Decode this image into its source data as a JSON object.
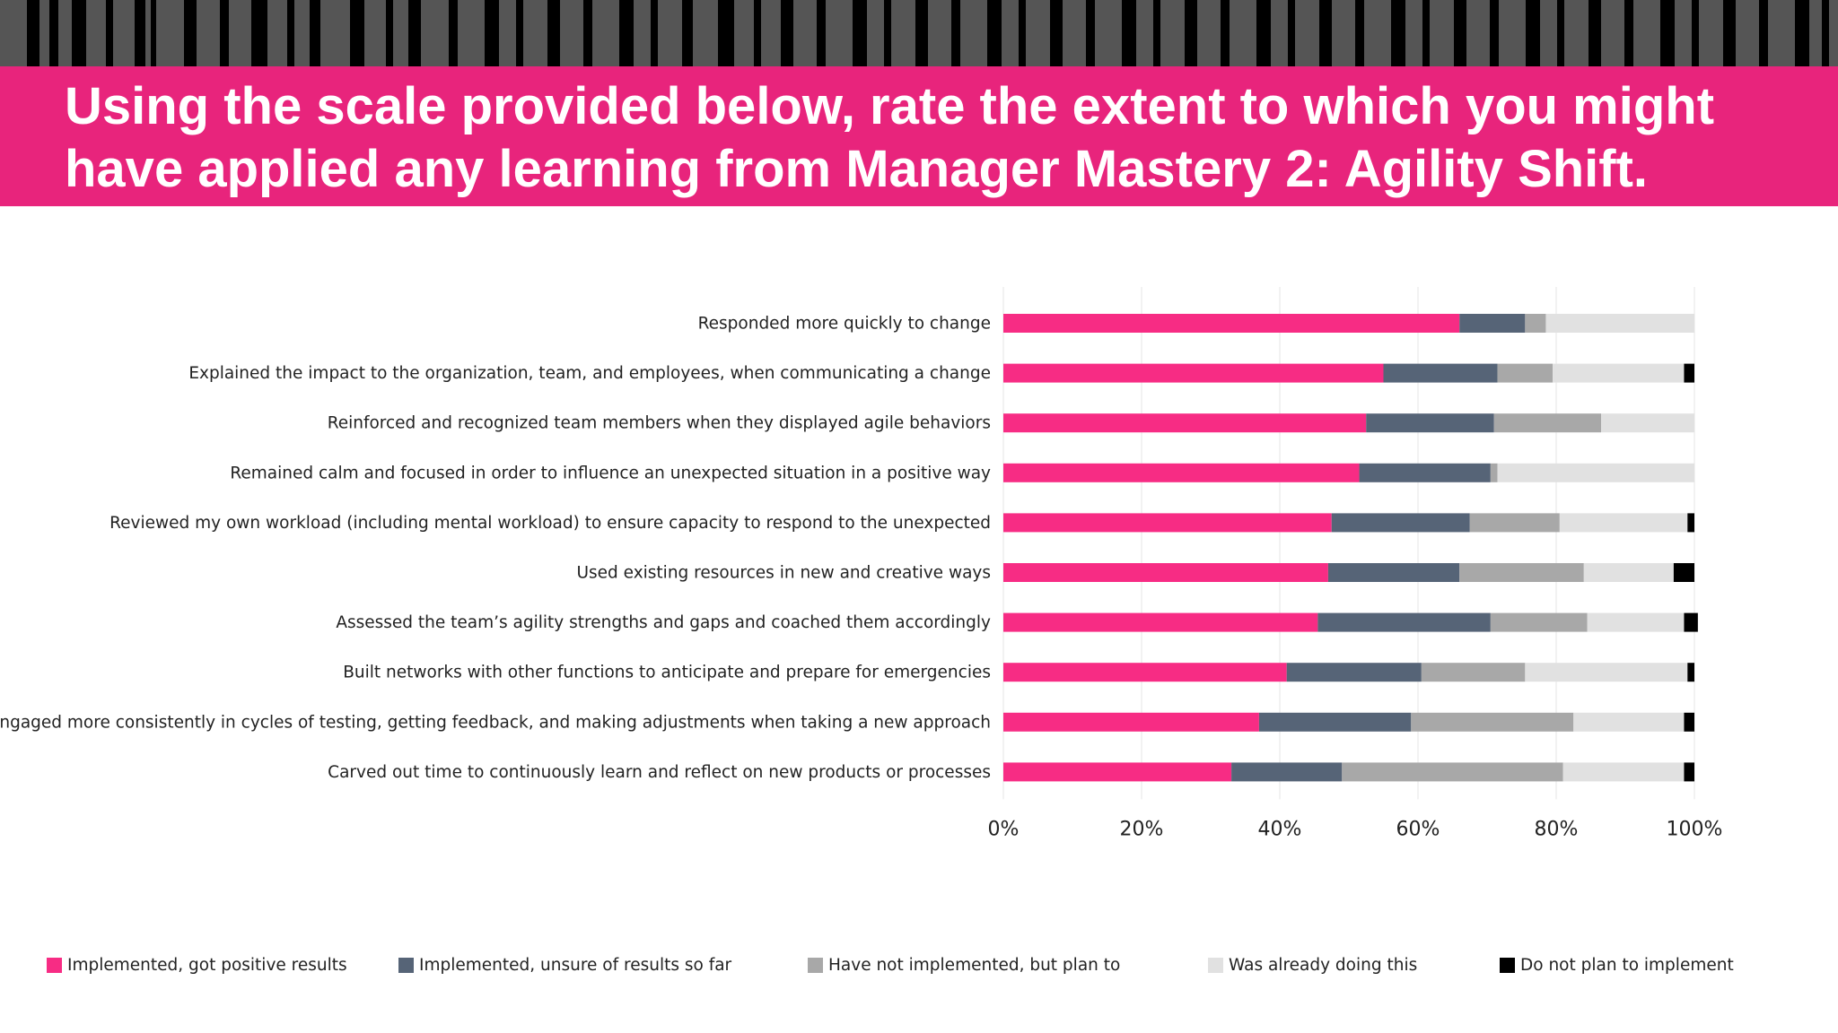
{
  "header": {
    "title": "Using the scale provided below, rate the extent to which you might have applied any learning from Manager Mastery 2: Agility Shift."
  },
  "colors": {
    "title_band": "#e8247c",
    "stripe_band": "#555555",
    "stripes": "#000000"
  },
  "chart_data": {
    "type": "bar",
    "orientation": "horizontal",
    "stacked": true,
    "percent_stacked": true,
    "categories": [
      "Responded  more quickly to change",
      "Explained the impact to the organization, team, and employees, when communicating a change",
      "Reinforced and recognized team members when they displayed agile behaviors",
      "Remained calm and focused in order to influence an unexpected situation in a positive way",
      "Reviewed my own workload (including mental workload) to ensure capacity to respond to the unexpected",
      "Used existing resources in new and creative ways",
      "Assessed the team’s agility strengths and gaps and coached them accordingly",
      "Built networks with other functions to anticipate and prepare for emergencies",
      "Engaged more consistently in cycles of testing, getting feedback, and making adjustments when taking a new approach",
      "Carved out time to continuously learn and reflect on new products or processes"
    ],
    "series": [
      {
        "name": "Implemented, got positive results",
        "color": "#f72c84",
        "values": [
          66,
          55,
          52.5,
          51.5,
          47.5,
          47,
          45.5,
          41,
          37,
          33
        ]
      },
      {
        "name": "Implemented, unsure of results so far",
        "color": "#566477",
        "values": [
          9.5,
          16.5,
          18.5,
          19,
          20,
          19,
          25,
          19.5,
          22,
          16
        ]
      },
      {
        "name": "Have not implemented, but plan to",
        "color": "#a8a8a8",
        "values": [
          3,
          8,
          15.5,
          1,
          13,
          18,
          14,
          15,
          23.5,
          32
        ]
      },
      {
        "name": "Was already doing this",
        "color": "#e1e1e1",
        "values": [
          21.5,
          19,
          13.5,
          28.5,
          18.5,
          13,
          14,
          23.5,
          16,
          17.5
        ]
      },
      {
        "name": "Do not plan to implement",
        "color": "#000000",
        "values": [
          0,
          1.5,
          0,
          0,
          1,
          3,
          2,
          1,
          1.5,
          1.5
        ]
      }
    ],
    "xlim": [
      0,
      100
    ],
    "x_ticks": [
      "0%",
      "20%",
      "40%",
      "60%",
      "80%",
      "100%"
    ],
    "x_tick_values": [
      0,
      20,
      40,
      60,
      80,
      100
    ],
    "grid": true,
    "legend_position": "bottom"
  }
}
